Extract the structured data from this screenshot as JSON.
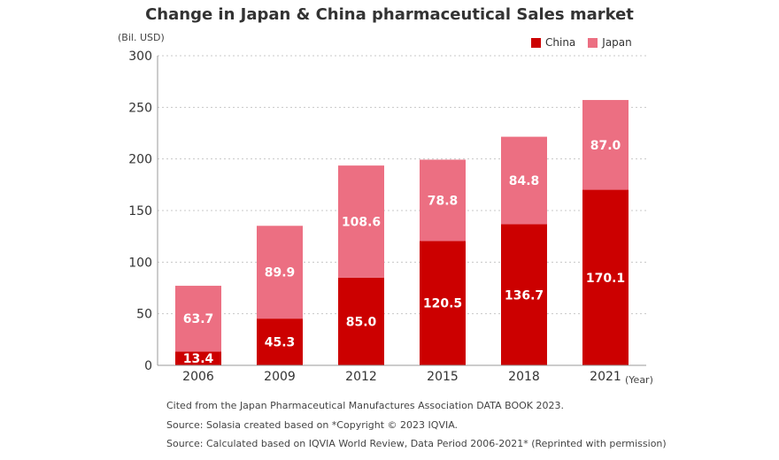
{
  "chart_data": {
    "type": "bar",
    "stacked": true,
    "title": "Change in Japan & China pharmaceutical Sales market",
    "ylabel": "(Bil. USD)",
    "xlabel": "(Year)",
    "categories": [
      "2006",
      "2009",
      "2012",
      "2015",
      "2018",
      "2021"
    ],
    "series": [
      {
        "name": "China",
        "values": [
          13.4,
          45.3,
          85.0,
          120.5,
          136.7,
          170.1
        ],
        "labels": [
          "13.4",
          "45.3",
          "85.0",
          "120.5",
          "136.7",
          "170.1"
        ],
        "color": "#cc0000"
      },
      {
        "name": "Japan",
        "values": [
          63.7,
          89.9,
          108.6,
          78.8,
          84.8,
          87.0
        ],
        "labels": [
          "63.7",
          "89.9",
          "108.6",
          "78.8",
          "84.8",
          "87.0"
        ],
        "color": "#ec6f82"
      }
    ],
    "ylim": [
      0,
      300
    ],
    "yticks": [
      "0",
      "50",
      "100",
      "150",
      "200",
      "250",
      "300"
    ],
    "grid": true,
    "legend": "top-right"
  },
  "notes": [
    "Cited from the Japan Pharmaceutical Manufactures Association DATA BOOK 2023.",
    "Source: Solasia created based on *Copyright © 2023 IQVIA.",
    "Source: Calculated based on IQVIA World Review, Data Period 2006-2021* (Reprinted with permission)"
  ]
}
